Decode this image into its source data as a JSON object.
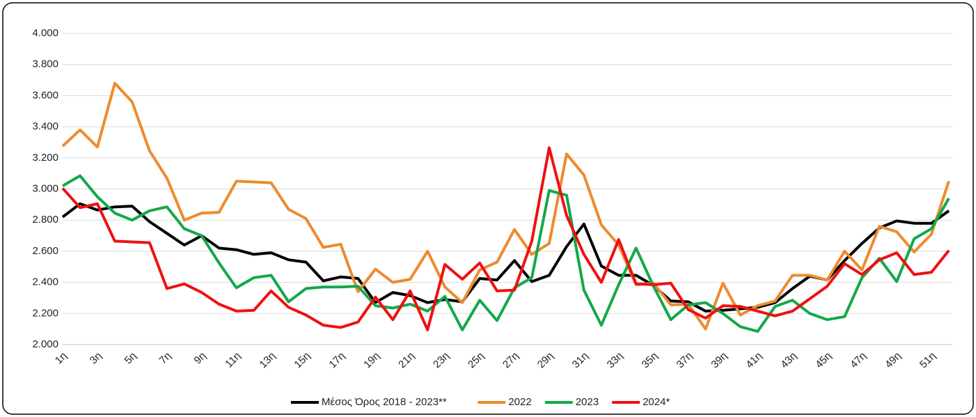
{
  "chart_data": {
    "type": "line",
    "categories": [
      "1η",
      null,
      "3η",
      null,
      "5η",
      null,
      "7η",
      null,
      "9η",
      null,
      "11η",
      null,
      "13η",
      null,
      "15η",
      null,
      "17η",
      null,
      "19η",
      null,
      "21η",
      null,
      "23η",
      null,
      "25η",
      null,
      "27η",
      null,
      "29η",
      null,
      "31η",
      null,
      "33η",
      null,
      "35η",
      null,
      "37η",
      null,
      "39η",
      null,
      "41η",
      null,
      "43η",
      null,
      "45η",
      null,
      "47η",
      null,
      "49η",
      null,
      "51η",
      null
    ],
    "ylim": [
      2000,
      4000
    ],
    "yticks": [
      {
        "value": 2000,
        "label": "2.000"
      },
      {
        "value": 2200,
        "label": "2.200"
      },
      {
        "value": 2400,
        "label": "2.400"
      },
      {
        "value": 2600,
        "label": "2.600"
      },
      {
        "value": 2800,
        "label": "2.800"
      },
      {
        "value": 3000,
        "label": "3.000"
      },
      {
        "value": 3200,
        "label": "3.200"
      },
      {
        "value": 3400,
        "label": "3.400"
      },
      {
        "value": 3600,
        "label": "3.600"
      },
      {
        "value": 3800,
        "label": "3.800"
      },
      {
        "value": 4000,
        "label": "4.000"
      }
    ],
    "grid": true,
    "legend": "bottom",
    "series": [
      {
        "name": "Μέσος Όρος 2018 - 2023**",
        "color": "#000000",
        "values": [
          2820,
          2905,
          2865,
          2885,
          2890,
          2790,
          2715,
          2640,
          2700,
          2620,
          2610,
          2580,
          2590,
          2545,
          2530,
          2410,
          2435,
          2425,
          2270,
          2335,
          2315,
          2270,
          2290,
          2275,
          2425,
          2415,
          2540,
          2405,
          2445,
          2630,
          2775,
          2505,
          2445,
          2445,
          2380,
          2280,
          2275,
          2215,
          2220,
          2230,
          2240,
          2270,
          2360,
          2440,
          2415,
          2540,
          2650,
          2750,
          2795,
          2780,
          2780,
          2860
        ]
      },
      {
        "name": "2022",
        "color": "#ed8b2f",
        "values": [
          3275,
          3380,
          3270,
          3680,
          3560,
          3245,
          3070,
          2800,
          2845,
          2850,
          3050,
          3045,
          3040,
          2870,
          2810,
          2625,
          2645,
          2340,
          2485,
          2400,
          2420,
          2600,
          2370,
          2270,
          2480,
          2530,
          2740,
          2580,
          2650,
          3225,
          3090,
          2770,
          2640,
          2385,
          2395,
          2255,
          2260,
          2100,
          2395,
          2190,
          2250,
          2280,
          2445,
          2445,
          2415,
          2600,
          2480,
          2760,
          2725,
          2595,
          2710,
          3050
        ]
      },
      {
        "name": "2023",
        "color": "#14a84a",
        "values": [
          3020,
          3085,
          2950,
          2845,
          2800,
          2860,
          2885,
          2745,
          2700,
          2525,
          2365,
          2430,
          2445,
          2275,
          2360,
          2370,
          2370,
          2375,
          2250,
          2235,
          2260,
          2215,
          2310,
          2095,
          2285,
          2155,
          2365,
          2430,
          2990,
          2960,
          2350,
          2125,
          2385,
          2620,
          2375,
          2160,
          2255,
          2270,
          2200,
          2115,
          2085,
          2245,
          2285,
          2200,
          2160,
          2180,
          2430,
          2555,
          2405,
          2680,
          2745,
          2940
        ]
      },
      {
        "name": "2024*",
        "color": "#ee1111",
        "values": [
          3005,
          2880,
          2905,
          2665,
          2660,
          2655,
          2360,
          2390,
          2335,
          2260,
          2215,
          2220,
          2345,
          2240,
          2190,
          2125,
          2110,
          2145,
          2305,
          2160,
          2345,
          2095,
          2515,
          2420,
          2525,
          2345,
          2350,
          2665,
          3265,
          2830,
          2580,
          2400,
          2675,
          2390,
          2385,
          2395,
          2225,
          2170,
          2250,
          2245,
          2215,
          2185,
          2215,
          2295,
          2375,
          2520,
          2450,
          2545,
          2590,
          2450,
          2465,
          2605
        ]
      }
    ]
  }
}
